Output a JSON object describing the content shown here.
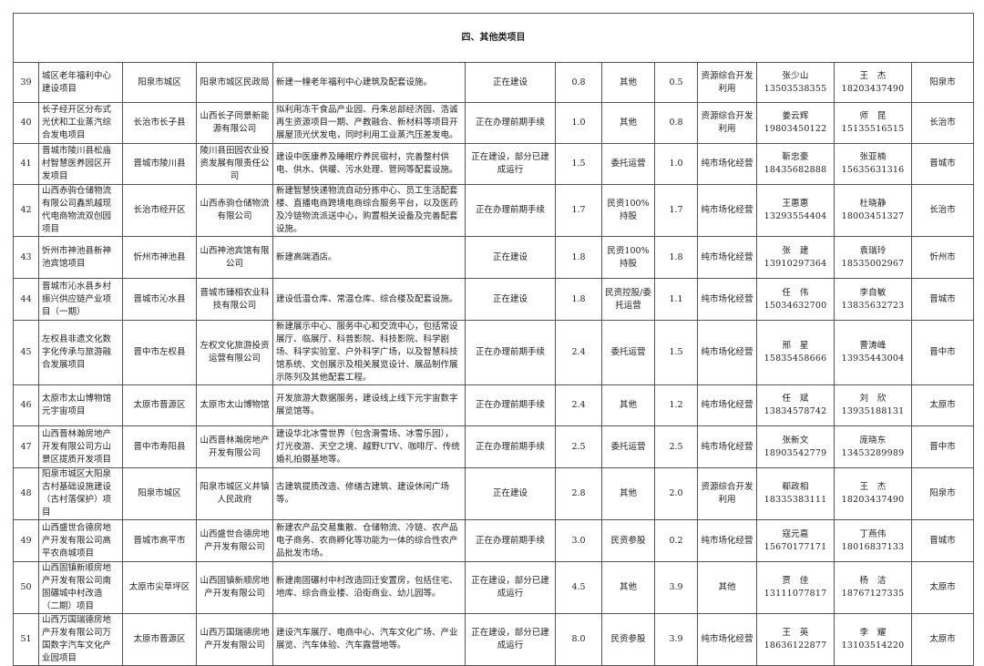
{
  "section_title": "四、其他类项目",
  "rows": [
    {
      "no": "39",
      "name": "城区老年福利中心建设项目",
      "location": "阳泉市城区",
      "owner": "阳泉市城区民政局",
      "content": "新建一幢老年福利中心建筑及配套设施。",
      "status": "正在建设",
      "investment": "0.8",
      "mode": "其他",
      "amount": "0.5",
      "operation": "资源综合开发利用",
      "contact1_name": "张少山",
      "contact1_phone": "13503538355",
      "contact2_name": "王　杰",
      "contact2_phone": "18203437490",
      "city": "阳泉市"
    },
    {
      "no": "40",
      "name": "长子经开区分布式光伏和工业蒸汽综合发电项目",
      "location": "长治市长子县",
      "owner": "山西长子同景新能源有限公司",
      "content": "拟利用冻干食品产业园、丹朱总部经济园、浩诚再生资源项目一期、产教融合、新材料等项目开展屋顶光伏发电，同时利用工业蒸汽压差发电。",
      "status": "正在办理前期手续",
      "investment": "1.0",
      "mode": "其他",
      "amount": "0.8",
      "operation": "资源综合开发利用",
      "contact1_name": "姜云辉",
      "contact1_phone": "19803450122",
      "contact2_name": "师　昆",
      "contact2_phone": "15135516515",
      "city": "长治市"
    },
    {
      "no": "41",
      "name": "晋城市陵川县松庙村智慧医养园区开发项目",
      "location": "晋城市陵川县",
      "owner": "陵川县田园农业投资发展有限责任公司",
      "content": "建设中医康养及睡眠疗养民宿村，完善整村供电、供水、供暖、污水处理、管网等配套设施。",
      "status": "正在建设，部分已建成运行",
      "investment": "1.5",
      "mode": "委托运营",
      "amount": "1.0",
      "operation": "纯市场化经营",
      "contact1_name": "靳忠豪",
      "contact1_phone": "18435682888",
      "contact2_name": "张亚楠",
      "contact2_phone": "15635631316",
      "city": "晋城市"
    },
    {
      "no": "42",
      "name": "山西赤驹仓储物流有限公司鑫凯越现代电商物流双创园项目",
      "location": "长治市经开区",
      "owner": "山西赤驹仓储物流有限公司",
      "content": "新建智慧快递物流自动分拣中心、员工生活配套楼、直播电商跨境电商综合服务平台，以及医药及冷链物流派送中心，购置相关设备及完善配套设施。",
      "status": "正在办理前期手续",
      "investment": "1.7",
      "mode": "民资100%持股",
      "amount": "1.7",
      "operation": "纯市场化经营",
      "contact1_name": "王惠惠",
      "contact1_phone": "13293554404",
      "contact2_name": "杜晓静",
      "contact2_phone": "18003451327",
      "city": "长治市"
    },
    {
      "no": "43",
      "name": "忻州市神池县新神池宾馆项目",
      "location": "忻州市神池县",
      "owner": "山西神池宾馆有限公司",
      "content": "新建高端酒店。",
      "status": "正在建设",
      "investment": "1.8",
      "mode": "民资100%持股",
      "amount": "1.8",
      "operation": "纯市场化经营",
      "contact1_name": "张　建",
      "contact1_phone": "13910297364",
      "contact2_name": "袁瑞玲",
      "contact2_phone": "18535002967",
      "city": "忻州市"
    },
    {
      "no": "44",
      "name": "晋城市沁水县乡村振兴供应链产业项目（一期）",
      "location": "晋城市沁水县",
      "owner": "晋城市臻相农业科技有限公司",
      "content": "建设低温仓库、常温仓库、综合楼及配套设施。",
      "status": "正在建设",
      "investment": "1.8",
      "mode": "民资控股/委托运营",
      "amount": "1.1",
      "operation": "纯市场化经营",
      "contact1_name": "任　伟",
      "contact1_phone": "15034632700",
      "contact2_name": "李自敏",
      "contact2_phone": "13835632723",
      "city": "晋城市"
    },
    {
      "no": "45",
      "name": "左权县非遗文化数字化传承与旅游融合发展项目",
      "location": "晋中市左权县",
      "owner": "左权文化旅游投资运营有限公司",
      "content": "新建展示中心、服务中心和交流中心，包括常设展厅、临展厅、科普影院、科技影院、科学剧场、科学实验室、户外科学广场，以及智慧科技馆系统、文创展示及相关展览设计、展品制作展示陈列及其他配套工程。",
      "status": "正在办理前期手续",
      "investment": "2.4",
      "mode": "委托运营",
      "amount": "1.5",
      "operation": "纯市场化经营",
      "contact1_name": "邢　星",
      "contact1_phone": "15835458666",
      "contact2_name": "曹涛峰",
      "contact2_phone": "13935443004",
      "city": "晋中市"
    },
    {
      "no": "46",
      "name": "太原市太山博物馆元宇宙项目",
      "location": "太原市晋源区",
      "owner": "太原市太山博物馆",
      "content": "开发旅游大数据服务，建设线上线下元宇宙数字展览馆等。",
      "status": "正在办理前期手续",
      "investment": "2.4",
      "mode": "其他",
      "amount": "1.2",
      "operation": "纯市场化经营",
      "contact1_name": "任　斌",
      "contact1_phone": "13834578742",
      "contact2_name": "刘　欣",
      "contact2_phone": "13935188131",
      "city": "太原市"
    },
    {
      "no": "47",
      "name": "山西晋林瀚房地产开发有限公司方山景区提质开发项目",
      "location": "晋中市寿阳县",
      "owner": "山西晋林瀚房地产开发有限公司",
      "content": "建设华北冰雪世界（包含滑雪场、冰雪乐园），灯光夜游、天空之境、越野UTV、咖啡厅、传统婚礼拍摄基地等。",
      "status": "正在办理前期手续",
      "investment": "2.5",
      "mode": "委托运营",
      "amount": "2.5",
      "operation": "纯市场化经营",
      "contact1_name": "张新文",
      "contact1_phone": "18903542779",
      "contact2_name": "庞晓东",
      "contact2_phone": "13453289989",
      "city": "晋中市"
    },
    {
      "no": "48",
      "name": "阳泉市城区大阳泉古村基础设施建设（古村落保护）项目",
      "location": "阳泉市城区",
      "owner": "阳泉市城区义井镇人民政府",
      "content": "古建筑提质改造、修缮古建筑、建设休闲广场等。",
      "status": "正在建设",
      "investment": "2.8",
      "mode": "其他",
      "amount": "2.0",
      "operation": "资源综合开发利用",
      "contact1_name": "郗政相",
      "contact1_phone": "18335383111",
      "contact2_name": "王　杰",
      "contact2_phone": "18203437490",
      "city": "阳泉市"
    },
    {
      "no": "49",
      "name": "山西盛世合德房地产开发有限公司高平农商城项目",
      "location": "晋城市高平市",
      "owner": "山西盛世合德房地产开发有限公司",
      "content": "新建农产品交易集散、仓储物流、冷链、农产品电子商务、农商孵化等功能为一体的综合性农产品批发市场。",
      "status": "正在办理前期手续",
      "investment": "3.0",
      "mode": "民资参股",
      "amount": "0.2",
      "operation": "纯市场化经营",
      "contact1_name": "寇元嘉",
      "contact1_phone": "15670177171",
      "contact2_name": "丁燕伟",
      "contact2_phone": "18016837133",
      "city": "晋城市"
    },
    {
      "no": "50",
      "name": "山西固镇新顺房地产开发有限公司南固碾城中村改造（二期）项目",
      "location": "太原市尖草坪区",
      "owner": "山西固镇新顺房地产开发有限公司",
      "content": "新建南固碾村中村改造回迁安置房，包括住宅、地库、综合商业楼、沿街商业、幼儿园等。",
      "status": "正在建设，部分已建成运行",
      "investment": "4.5",
      "mode": "其他",
      "amount": "3.9",
      "operation": "其他",
      "contact1_name": "贾　佳",
      "contact1_phone": "13111077817",
      "contact2_name": "杨　洁",
      "contact2_phone": "18767127335",
      "city": "太原市"
    },
    {
      "no": "51",
      "name": "山西万国瑞德房地产开发有限公司万国数字汽车文化产业园项目",
      "location": "太原市晋源区",
      "owner": "山西万国瑞德房地产开发有限公司",
      "content": "建设汽车展厅、电商中心、汽车文化广场、产业展览、汽车体验、汽车露营地等。",
      "status": "正在建设，部分已建成运行",
      "investment": "8.0",
      "mode": "民资参股",
      "amount": "3.9",
      "operation": "纯市场化经营",
      "contact1_name": "王　英",
      "contact1_phone": "18636122877",
      "contact2_name": "李　耀",
      "contact2_phone": "13103514220",
      "city": "太原市"
    }
  ]
}
